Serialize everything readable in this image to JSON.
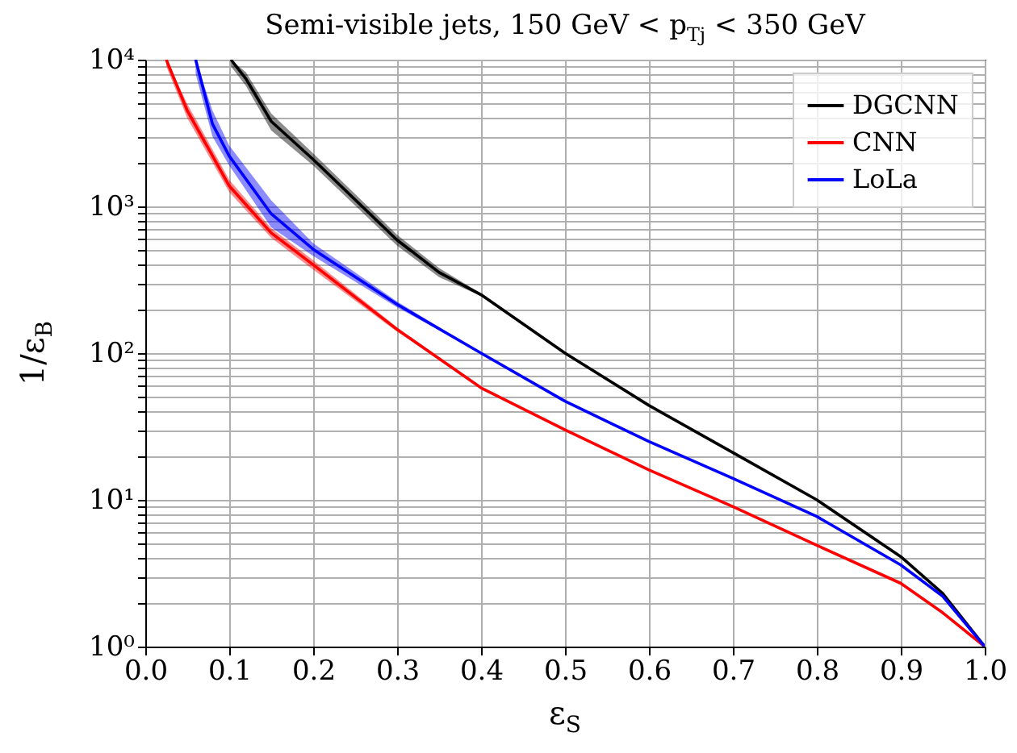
{
  "chart_data": {
    "type": "line",
    "title": "Semi-visible jets, 150 GeV < p$_{Tj}$ < 350 GeV",
    "xlabel": "ε$_{S}$",
    "ylabel": "1/ε$_{B}$",
    "log": "y",
    "grid": true,
    "legend": "top right",
    "line_style": "solid",
    "marker": "none",
    "xlim": [
      0,
      1
    ],
    "ylim": [
      1,
      10000
    ],
    "xticks": [
      {
        "value": 0,
        "label": "0.0"
      },
      0.1,
      0.2,
      0.3,
      0.4,
      0.5,
      0.6,
      0.7,
      0.8,
      0.9,
      {
        "value": 1,
        "label": "1.0"
      }
    ],
    "yticks": [
      {
        "value": 1,
        "label": "10⁰"
      },
      {
        "value": 2,
        "label": null
      },
      {
        "value": 3,
        "label": null
      },
      {
        "value": 4,
        "label": null
      },
      {
        "value": 5,
        "label": null
      },
      {
        "value": 6,
        "label": null
      },
      {
        "value": 7,
        "label": null
      },
      {
        "value": 8,
        "label": null
      },
      {
        "value": 9,
        "label": null
      },
      {
        "value": 10,
        "label": "10¹"
      },
      {
        "value": 20,
        "label": null
      },
      {
        "value": 30,
        "label": null
      },
      {
        "value": 40,
        "label": null
      },
      {
        "value": 50,
        "label": null
      },
      {
        "value": 60,
        "label": null
      },
      {
        "value": 70,
        "label": null
      },
      {
        "value": 80,
        "label": null
      },
      {
        "value": 90,
        "label": null
      },
      {
        "value": 100,
        "label": "10²"
      },
      {
        "value": 200,
        "label": null
      },
      {
        "value": 300,
        "label": null
      },
      {
        "value": 400,
        "label": null
      },
      {
        "value": 500,
        "label": null
      },
      {
        "value": 600,
        "label": null
      },
      {
        "value": 700,
        "label": null
      },
      {
        "value": 800,
        "label": null
      },
      {
        "value": 900,
        "label": null
      },
      {
        "value": 1000,
        "label": "10³"
      },
      {
        "value": 2000,
        "label": null
      },
      {
        "value": 3000,
        "label": null
      },
      {
        "value": 4000,
        "label": null
      },
      {
        "value": 5000,
        "label": null
      },
      {
        "value": 6000,
        "label": null
      },
      {
        "value": 7000,
        "label": null
      },
      {
        "value": 8000,
        "label": null
      },
      {
        "value": 9000,
        "label": null
      },
      {
        "value": 10000,
        "label": "10⁴"
      }
    ],
    "series": [
      {
        "name": "DGCNN",
        "color": "#000000",
        "x": [
          0.102,
          0.12,
          0.15,
          0.2,
          0.3,
          0.35,
          0.4,
          0.5,
          0.6,
          0.7,
          0.8,
          0.9,
          0.95,
          1.0
        ],
        "values": [
          10000,
          7400,
          3800,
          2090,
          590,
          355,
          250,
          100,
          44,
          21,
          10,
          4.1,
          2.3,
          1
        ],
        "lower": [
          9000,
          6600,
          3300,
          1900,
          540,
          330,
          245,
          100,
          44,
          21,
          10,
          4.1,
          2.3,
          1
        ],
        "upper": [
          10000,
          8200,
          4300,
          2300,
          640,
          380,
          255,
          100,
          44,
          21,
          10,
          4.1,
          2.3,
          1
        ]
      },
      {
        "name": "CNN",
        "color": "#ff0000",
        "x": [
          0.025,
          0.05,
          0.1,
          0.15,
          0.2,
          0.3,
          0.4,
          0.5,
          0.6,
          0.7,
          0.8,
          0.9,
          0.95,
          1.0
        ],
        "values": [
          10000,
          4500,
          1380,
          660,
          400,
          145,
          58,
          30,
          16,
          9,
          4.9,
          2.7,
          1.7,
          1
        ],
        "lower": [
          9000,
          4000,
          1250,
          610,
          370,
          140,
          58,
          30,
          16,
          9,
          4.9,
          2.7,
          1.7,
          1
        ],
        "upper": [
          10000,
          5000,
          1520,
          710,
          430,
          150,
          58,
          30,
          16,
          9,
          4.9,
          2.7,
          1.7,
          1
        ]
      },
      {
        "name": "LoLa",
        "color": "#0000ff",
        "x": [
          0.06,
          0.08,
          0.1,
          0.15,
          0.2,
          0.3,
          0.4,
          0.5,
          0.6,
          0.7,
          0.8,
          0.9,
          0.95,
          1.0
        ],
        "values": [
          10000,
          3650,
          2200,
          890,
          510,
          215,
          100,
          47,
          25,
          14,
          7.7,
          3.6,
          2.2,
          1
        ],
        "lower": [
          8000,
          3000,
          1900,
          720,
          460,
          205,
          100,
          47,
          25,
          14,
          7.7,
          3.6,
          2.2,
          1
        ],
        "upper": [
          10000,
          4500,
          2600,
          1100,
          560,
          225,
          100,
          47,
          25,
          14,
          7.7,
          3.6,
          2.2,
          1
        ]
      }
    ]
  }
}
